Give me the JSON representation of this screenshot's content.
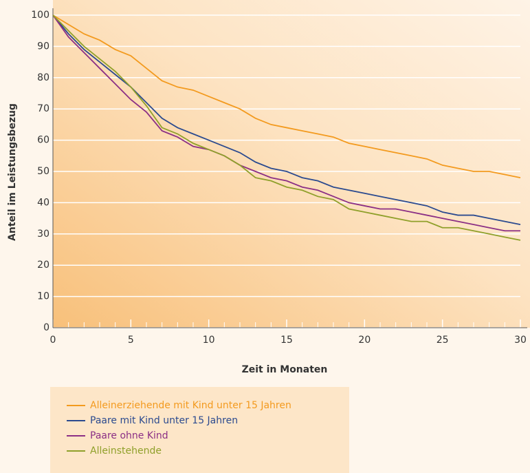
{
  "chart_data": {
    "type": "line",
    "xlabel": "Zeit in Monaten",
    "ylabel": "Anteil im Leistungsbezug",
    "x": [
      0,
      1,
      2,
      3,
      4,
      5,
      6,
      7,
      8,
      9,
      10,
      11,
      12,
      13,
      14,
      15,
      16,
      17,
      18,
      19,
      20,
      21,
      22,
      23,
      24,
      25,
      26,
      27,
      28,
      29,
      30
    ],
    "series": [
      {
        "name": "Alleinerziehende mit Kind unter 15 Jahren",
        "color": "#f39a1e",
        "values": [
          100,
          97,
          94,
          92,
          89,
          87,
          83,
          79,
          77,
          76,
          74,
          72,
          70,
          67,
          65,
          64,
          63,
          62,
          61,
          59,
          58,
          57,
          56,
          55,
          54,
          52,
          51,
          50,
          50,
          49,
          48
        ]
      },
      {
        "name": "Paare mit Kind unter 15 Jahren",
        "color": "#2b4a8f",
        "values": [
          100,
          94,
          89,
          85,
          81,
          77,
          72,
          67,
          64,
          62,
          60,
          58,
          56,
          53,
          51,
          50,
          48,
          47,
          45,
          44,
          43,
          42,
          41,
          40,
          39,
          37,
          36,
          36,
          35,
          34,
          33
        ]
      },
      {
        "name": "Paare ohne Kind",
        "color": "#8b2f85",
        "values": [
          100,
          93,
          88,
          83,
          78,
          73,
          69,
          63,
          61,
          58,
          57,
          55,
          52,
          50,
          48,
          47,
          45,
          44,
          42,
          40,
          39,
          38,
          38,
          37,
          36,
          35,
          34,
          33,
          32,
          31,
          31
        ]
      },
      {
        "name": "Alleinstehende",
        "color": "#8fa02a",
        "values": [
          100,
          95,
          90,
          86,
          82,
          77,
          71,
          64,
          62,
          59,
          57,
          55,
          52,
          48,
          47,
          45,
          44,
          42,
          41,
          38,
          37,
          36,
          35,
          34,
          34,
          32,
          32,
          31,
          30,
          29,
          28
        ]
      }
    ],
    "xlim": [
      0,
      30
    ],
    "xticks": [
      0,
      5,
      10,
      15,
      20,
      25,
      30
    ],
    "ylim": [
      0,
      100
    ],
    "yticks": [
      0,
      10,
      20,
      30,
      40,
      50,
      60,
      70,
      80,
      90,
      100
    ]
  }
}
